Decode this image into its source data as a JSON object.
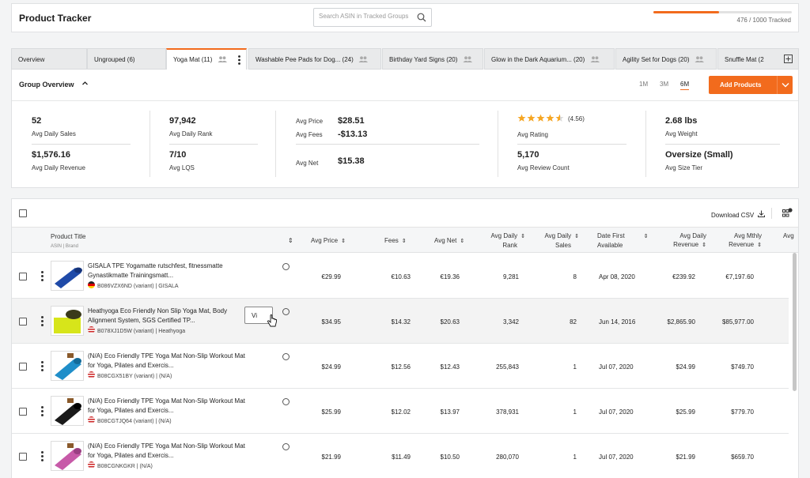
{
  "app": {
    "title": "Product Tracker",
    "search_placeholder": "Search ASIN in Tracked Groups",
    "tracked_label": "476 / 1000 Tracked",
    "tracked_fraction": 0.476,
    "accent_color": "#f26b1d"
  },
  "tabs": [
    {
      "label": "Overview",
      "active": false
    },
    {
      "label": "Ungrouped (6)",
      "active": false
    },
    {
      "label": "Yoga Mat (11)",
      "active": true
    },
    {
      "label": "Washable Pee Pads for Dog... (24)",
      "active": false
    },
    {
      "label": "Birthday Yard Signs (20)",
      "active": false
    },
    {
      "label": "Glow in the Dark Aquarium... (20)",
      "active": false
    },
    {
      "label": "Agility Set for Dogs (20)",
      "active": false
    },
    {
      "label": "Snuffle Mat (2",
      "active": false
    }
  ],
  "overview": {
    "title": "Group Overview",
    "ranges": [
      "1M",
      "3M",
      "6M"
    ],
    "active_range": "6M",
    "add_products_label": "Add Products",
    "metrics": {
      "avg_daily_sales": {
        "value": "52",
        "label": "Avg Daily Sales"
      },
      "avg_daily_revenue": {
        "value": "$1,576.16",
        "label": "Avg Daily Revenue"
      },
      "avg_daily_rank": {
        "value": "97,942",
        "label": "Avg Daily Rank"
      },
      "avg_lqs": {
        "value": "7/10",
        "label": "Avg LQS"
      },
      "avg_price": {
        "value": "$28.51",
        "label": "Avg Price"
      },
      "avg_fees": {
        "value": "-$13.13",
        "label": "Avg Fees"
      },
      "avg_net": {
        "value": "$15.38",
        "label": "Avg Net"
      },
      "avg_rating": {
        "value": "(4.56)",
        "label": "Avg Rating",
        "stars": 4.56
      },
      "avg_review_count": {
        "value": "5,170",
        "label": "Avg Review Count"
      },
      "avg_weight": {
        "value": "2.68 lbs",
        "label": "Avg Weight"
      },
      "avg_size_tier": {
        "value": "Oversize (Small)",
        "label": "Avg Size Tier"
      }
    }
  },
  "table": {
    "download_label": "Download CSV",
    "columns": {
      "product_title": "Product Title",
      "product_sub": "ASIN | Brand",
      "avg_price": "Avg Price",
      "fees": "Fees",
      "avg_net": "Avg Net",
      "avg_daily_rank": [
        "Avg Daily",
        "Rank"
      ],
      "avg_daily_sales": [
        "Avg Daily",
        "Sales"
      ],
      "date_first_available": [
        "Date First",
        "Available"
      ],
      "avg_daily_revenue": [
        "Avg Daily",
        "Revenue"
      ],
      "avg_mthly_revenue": [
        "Avg Mthly",
        "Revenue"
      ],
      "avg_more": "Avg"
    },
    "view_button_label": "Vi",
    "rows": [
      {
        "title": "GISALA TPE Yogamatte rutschfest, fitnessmatte Gynastikmatte Trainingsmatt...",
        "meta": "B086VZX6ND (variant) | GISALA",
        "flag": "de",
        "thumb": "#1f4aa8",
        "price": "€29.99",
        "fees": "€10.63",
        "net": "€19.36",
        "rank": "9,281",
        "sales": "8",
        "date": "Apr 08, 2020",
        "daily_rev": "€239.92",
        "mthly_rev": "€7,197.60"
      },
      {
        "title": "Heathyoga Eco Friendly Non Slip Yoga Mat, Body Alignment System, SGS Certified TP...",
        "meta": "B078XJ1D5W (variant) | Heathyoga",
        "flag": "us",
        "thumb": "#d7e51a",
        "price": "$34.95",
        "fees": "$14.32",
        "net": "$20.63",
        "rank": "3,342",
        "sales": "82",
        "date": "Jun 14, 2016",
        "daily_rev": "$2,865.90",
        "mthly_rev": "$85,977.00"
      },
      {
        "title": "(N/A) Eco Friendly TPE Yoga Mat Non-Slip Workout Mat for Yoga, Pilates and Exercis...",
        "meta": "B08CGX51BY (variant) | (N/A)",
        "flag": "us",
        "thumb": "#1f8ec9",
        "price": "$24.99",
        "fees": "$12.56",
        "net": "$12.43",
        "rank": "255,843",
        "sales": "1",
        "date": "Jul 07, 2020",
        "daily_rev": "$24.99",
        "mthly_rev": "$749.70"
      },
      {
        "title": "(N/A) Eco Friendly TPE Yoga Mat Non-Slip Workout Mat for Yoga, Pilates and Exercis...",
        "meta": "B08CGTJQ64 (variant) | (N/A)",
        "flag": "us",
        "thumb": "#1a1a1a",
        "price": "$25.99",
        "fees": "$12.02",
        "net": "$13.97",
        "rank": "378,931",
        "sales": "1",
        "date": "Jul 07, 2020",
        "daily_rev": "$25.99",
        "mthly_rev": "$779.70"
      },
      {
        "title": "(N/A) Eco Friendly TPE Yoga Mat Non-Slip Workout Mat for Yoga, Pilates and Exercis...",
        "meta": "B08CGNKGKR | (N/A)",
        "flag": "us",
        "thumb": "#c75aa8",
        "price": "$21.99",
        "fees": "$11.49",
        "net": "$10.50",
        "rank": "280,070",
        "sales": "1",
        "date": "Jul 07, 2020",
        "daily_rev": "$21.99",
        "mthly_rev": "$659.70"
      }
    ]
  }
}
